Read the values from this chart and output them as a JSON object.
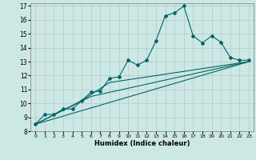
{
  "xlabel": "Humidex (Indice chaleur)",
  "xlim": [
    -0.5,
    23.5
  ],
  "ylim": [
    8,
    17.2
  ],
  "xticks": [
    0,
    1,
    2,
    3,
    4,
    5,
    6,
    7,
    8,
    9,
    10,
    11,
    12,
    13,
    14,
    15,
    16,
    17,
    18,
    19,
    20,
    21,
    22,
    23
  ],
  "yticks": [
    8,
    9,
    10,
    11,
    12,
    13,
    14,
    15,
    16,
    17
  ],
  "background_color": "#cce8e4",
  "grid_color": "#bbcccc",
  "line_color": "#006666",
  "line1_x": [
    0,
    1,
    2,
    3,
    4,
    5,
    6,
    7,
    8,
    9,
    10,
    11,
    12,
    13,
    14,
    15,
    16,
    17,
    18,
    19,
    20,
    21,
    22,
    23
  ],
  "line1_y": [
    8.5,
    9.2,
    9.2,
    9.6,
    9.6,
    10.2,
    10.8,
    10.9,
    11.8,
    11.9,
    13.1,
    12.75,
    13.1,
    14.5,
    16.3,
    16.5,
    17.0,
    14.85,
    14.35,
    14.85,
    14.4,
    13.3,
    13.1,
    13.1
  ],
  "line2_x": [
    0,
    23
  ],
  "line2_y": [
    8.5,
    13.0
  ],
  "line3_x": [
    0,
    5,
    8,
    23
  ],
  "line3_y": [
    8.5,
    10.2,
    11.5,
    13.0
  ],
  "line4_x": [
    0,
    6,
    23
  ],
  "line4_y": [
    8.5,
    10.5,
    13.0
  ]
}
